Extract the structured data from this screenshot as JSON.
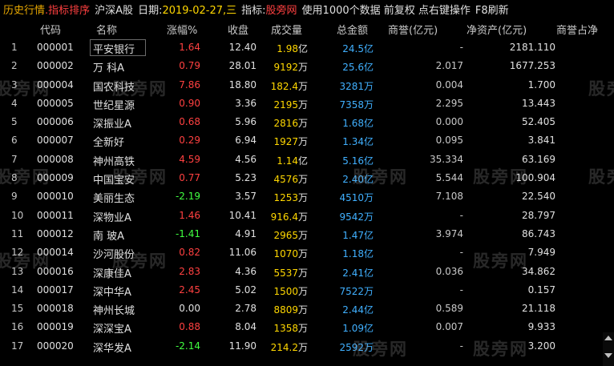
{
  "topbar": {
    "title": "历史行情",
    "sort": ".指标排序",
    "market": "沪深A股",
    "date_label": "日期:",
    "date": "2019-02-27,三",
    "indicator_label": "指标:",
    "indicator": "股旁网",
    "hint": "使用1000个数据 前复权 点右键操作",
    "f8": "F8刷新"
  },
  "header": {
    "code": "代码",
    "name": "名称",
    "change": "涨幅%",
    "close": "收盘",
    "volume": "成交量",
    "amount": "总金额",
    "goodwill": "商誉(亿元)",
    "net_assets": "净资产(亿元)",
    "goodwill_ratio": "商誉占净"
  },
  "watermark": "股旁网",
  "rows": [
    {
      "idx": "1",
      "code": "000001",
      "name": "平安银行",
      "chg": "1.64",
      "dir": "up",
      "close": "12.40",
      "vol": "1.98",
      "vol_unit": "亿",
      "amt": "24.5",
      "amt_unit": "亿",
      "gw": "-",
      "na": "2181.110"
    },
    {
      "idx": "2",
      "code": "000002",
      "name": "万 科A",
      "chg": "0.79",
      "dir": "up",
      "close": "28.01",
      "vol": "9192",
      "vol_unit": "万",
      "amt": "25.6",
      "amt_unit": "亿",
      "gw": "2.017",
      "na": "1677.253"
    },
    {
      "idx": "3",
      "code": "000004",
      "name": "国农科技",
      "chg": "7.86",
      "dir": "up",
      "close": "18.80",
      "vol": "182.4",
      "vol_unit": "万",
      "amt": "3281",
      "amt_unit": "万",
      "gw": "0.004",
      "na": "1.700"
    },
    {
      "idx": "4",
      "code": "000005",
      "name": "世纪星源",
      "chg": "0.90",
      "dir": "up",
      "close": "3.36",
      "vol": "2195",
      "vol_unit": "万",
      "amt": "7358",
      "amt_unit": "万",
      "gw": "2.295",
      "na": "13.443"
    },
    {
      "idx": "5",
      "code": "000006",
      "name": "深振业A",
      "chg": "0.68",
      "dir": "up",
      "close": "5.96",
      "vol": "2816",
      "vol_unit": "万",
      "amt": "1.68",
      "amt_unit": "亿",
      "gw": "0.000",
      "na": "52.405"
    },
    {
      "idx": "6",
      "code": "000007",
      "name": "全新好",
      "chg": "0.29",
      "dir": "up",
      "close": "6.94",
      "vol": "1927",
      "vol_unit": "万",
      "amt": "1.34",
      "amt_unit": "亿",
      "gw": "0.095",
      "na": "3.841"
    },
    {
      "idx": "7",
      "code": "000008",
      "name": "神州高铁",
      "chg": "4.59",
      "dir": "up",
      "close": "4.56",
      "vol": "1.14",
      "vol_unit": "亿",
      "amt": "5.16",
      "amt_unit": "亿",
      "gw": "35.334",
      "na": "63.169"
    },
    {
      "idx": "8",
      "code": "000009",
      "name": "中国宝安",
      "chg": "0.77",
      "dir": "up",
      "close": "5.23",
      "vol": "4576",
      "vol_unit": "万",
      "amt": "2.40",
      "amt_unit": "亿",
      "gw": "5.544",
      "na": "100.904"
    },
    {
      "idx": "9",
      "code": "000010",
      "name": "美丽生态",
      "chg": "-2.19",
      "dir": "down",
      "close": "3.57",
      "vol": "1253",
      "vol_unit": "万",
      "amt": "4510",
      "amt_unit": "万",
      "gw": "7.108",
      "na": "22.540"
    },
    {
      "idx": "10",
      "code": "000011",
      "name": "深物业A",
      "chg": "1.46",
      "dir": "up",
      "close": "10.41",
      "vol": "916.4",
      "vol_unit": "万",
      "amt": "9542",
      "amt_unit": "万",
      "gw": "-",
      "na": "28.797"
    },
    {
      "idx": "11",
      "code": "000012",
      "name": "南 玻A",
      "chg": "-1.41",
      "dir": "down",
      "close": "4.91",
      "vol": "2965",
      "vol_unit": "万",
      "amt": "1.47",
      "amt_unit": "亿",
      "gw": "3.974",
      "na": "86.743"
    },
    {
      "idx": "12",
      "code": "000014",
      "name": "沙河股份",
      "chg": "0.82",
      "dir": "up",
      "close": "11.06",
      "vol": "1070",
      "vol_unit": "万",
      "amt": "1.18",
      "amt_unit": "亿",
      "gw": "-",
      "na": "7.949"
    },
    {
      "idx": "13",
      "code": "000016",
      "name": "深康佳A",
      "chg": "2.83",
      "dir": "up",
      "close": "4.36",
      "vol": "5537",
      "vol_unit": "万",
      "amt": "2.41",
      "amt_unit": "亿",
      "gw": "0.036",
      "na": "34.862"
    },
    {
      "idx": "14",
      "code": "000017",
      "name": "深中华A",
      "chg": "2.45",
      "dir": "up",
      "close": "5.02",
      "vol": "1500",
      "vol_unit": "万",
      "amt": "7522",
      "amt_unit": "万",
      "gw": "-",
      "na": "0.157"
    },
    {
      "idx": "15",
      "code": "000018",
      "name": "神州长城",
      "chg": "0.00",
      "dir": "flat",
      "close": "2.78",
      "vol": "8809",
      "vol_unit": "万",
      "amt": "2.44",
      "amt_unit": "亿",
      "gw": "0.589",
      "na": "21.118"
    },
    {
      "idx": "16",
      "code": "000019",
      "name": "深深宝A",
      "chg": "0.88",
      "dir": "up",
      "close": "8.04",
      "vol": "1358",
      "vol_unit": "万",
      "amt": "1.09",
      "amt_unit": "亿",
      "gw": "0.007",
      "na": "9.933"
    },
    {
      "idx": "17",
      "code": "000020",
      "name": "深华发A",
      "chg": "-2.14",
      "dir": "down",
      "close": "11.90",
      "vol": "214.2",
      "vol_unit": "万",
      "amt": "2592",
      "amt_unit": "万",
      "gw": "-",
      "na": "3.200"
    }
  ]
}
